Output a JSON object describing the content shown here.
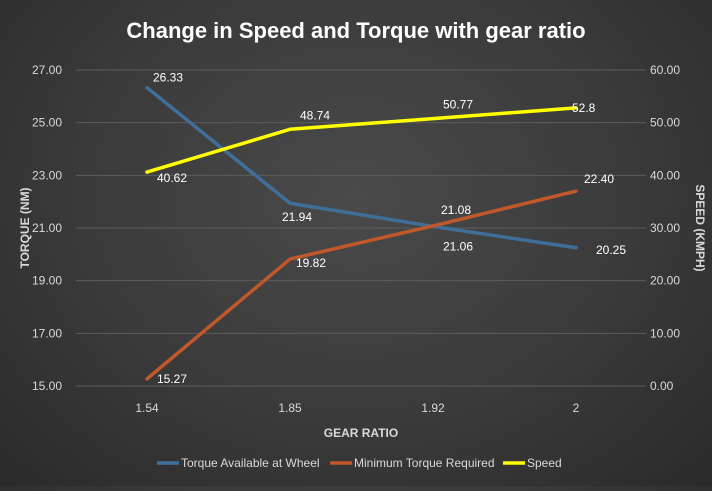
{
  "chart_data": {
    "type": "line",
    "title": "Change in Speed and Torque with gear ratio",
    "xlabel": "GEAR RATIO",
    "ylabel": "TORQUE (NM)",
    "y2label": "SPEED (KMPH)",
    "categories": [
      "1.54",
      "1.85",
      "1.92",
      "2"
    ],
    "ylim": [
      15,
      27
    ],
    "y2lim": [
      0,
      60
    ],
    "yticks": [
      "15.00",
      "17.00",
      "19.00",
      "21.00",
      "23.00",
      "25.00",
      "27.00"
    ],
    "y2ticks": [
      "0.00",
      "10.00",
      "20.00",
      "30.00",
      "40.00",
      "50.00",
      "60.00"
    ],
    "grid": true,
    "legend": "bottom",
    "series": [
      {
        "name": "Torque Available at Wheel",
        "axis": "left",
        "color": "#3f6f98",
        "values": [
          26.33,
          21.94,
          21.06,
          20.25
        ],
        "labels": [
          "26.33",
          "21.94",
          "21.06",
          "20.25"
        ]
      },
      {
        "name": "Minimum Torque Required",
        "axis": "left",
        "color": "#c0582b",
        "values": [
          15.27,
          19.82,
          21.08,
          22.4
        ],
        "labels": [
          "15.27",
          "19.82",
          "21.08",
          "22.40"
        ]
      },
      {
        "name": "Speed",
        "axis": "right",
        "color": "#ffff00",
        "values": [
          40.62,
          48.74,
          50.77,
          52.8
        ],
        "labels": [
          "40.62",
          "48.74",
          "50.77",
          "52.8"
        ]
      }
    ]
  }
}
